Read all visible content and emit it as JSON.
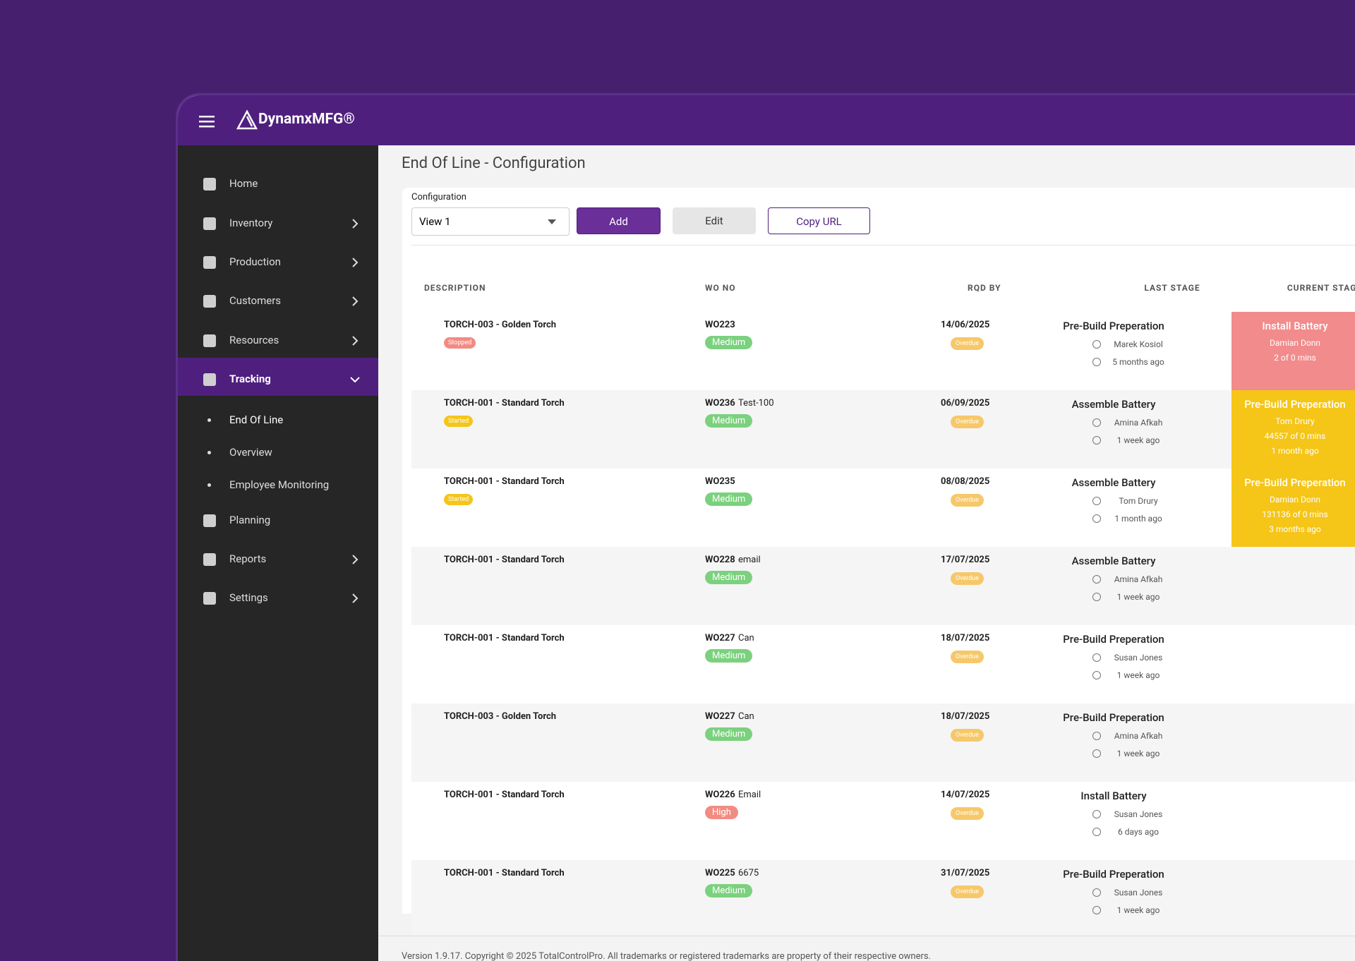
{
  "header": {
    "brand": "DynamxMFG®"
  },
  "sidebar": {
    "items": [
      "Home",
      "Inventory",
      "Production",
      "Customers",
      "Resources",
      "Tracking",
      "End Of Line",
      "Overview",
      "Employee Monitoring",
      "Planning",
      "Reports",
      "Settings"
    ]
  },
  "page": {
    "title": "End Of Line - Configuration",
    "config_label": "Configuration",
    "view": "View 1",
    "buttons": [
      "Add",
      "Edit",
      "Copy URL"
    ]
  },
  "table": {
    "columns": [
      "DESCRIPTION",
      "WO NO",
      "RQD BY",
      "LAST STAGE",
      "CURRENT STAGE"
    ],
    "rows": [
      {
        "description": "TORCH-003 - Golden Torch",
        "status": "Stopped",
        "status_color": "#f28b82",
        "wo": "WO223",
        "wo_note": "",
        "priority": "Medium",
        "priority_color": "#7bd17e",
        "rqd_by": "14/06/2025",
        "overdue": "Overdue",
        "last_stage": "Pre-Build Preperation",
        "last_user": "Marek Kosiol",
        "last_time": "5 months ago",
        "current_stage": "Install Battery",
        "current_user": "Damian Donn",
        "current_mins": "2 of 0 mins",
        "current_time": "",
        "current_color": "#f28b8b"
      },
      {
        "description": "TORCH-001 - Standard Torch",
        "status": "Started",
        "status_color": "#f5c518",
        "wo": "WO236",
        "wo_note": "Test-100",
        "priority": "Medium",
        "priority_color": "#7bd17e",
        "rqd_by": "06/09/2025",
        "overdue": "Overdue",
        "last_stage": "Assemble Battery",
        "last_user": "Amina Afkah",
        "last_time": "1 week ago",
        "current_stage": "Pre-Build Preperation",
        "current_user": "Tom Drury",
        "current_mins": "44557 of 0 mins",
        "current_time": "1 month ago",
        "current_color": "#f5c518"
      },
      {
        "description": "TORCH-001 - Standard Torch",
        "status": "Started",
        "status_color": "#f5c518",
        "wo": "WO235",
        "wo_note": "",
        "priority": "Medium",
        "priority_color": "#7bd17e",
        "rqd_by": "08/08/2025",
        "overdue": "Overdue",
        "last_stage": "Assemble Battery",
        "last_user": "Tom Drury",
        "last_time": "1 month ago",
        "current_stage": "Pre-Build Preperation",
        "current_user": "Damian Donn",
        "current_mins": "131136 of 0 mins",
        "current_time": "3 months ago",
        "current_color": "#f5c518"
      },
      {
        "description": "TORCH-001 - Standard Torch",
        "wo": "WO228",
        "wo_note": "email",
        "priority": "Medium",
        "priority_color": "#7bd17e",
        "rqd_by": "17/07/2025",
        "overdue": "Overdue",
        "last_stage": "Assemble Battery",
        "last_user": "Amina Afkah",
        "last_time": "1 week ago"
      },
      {
        "description": "TORCH-001 - Standard Torch",
        "wo": "WO227",
        "wo_note": "Can",
        "priority": "Medium",
        "priority_color": "#7bd17e",
        "rqd_by": "18/07/2025",
        "overdue": "Overdue",
        "last_stage": "Pre-Build Preperation",
        "last_user": "Susan Jones",
        "last_time": "1 week ago"
      },
      {
        "description": "TORCH-003 - Golden Torch",
        "wo": "WO227",
        "wo_note": "Can",
        "priority": "Medium",
        "priority_color": "#7bd17e",
        "rqd_by": "18/07/2025",
        "overdue": "Overdue",
        "last_stage": "Pre-Build Preperation",
        "last_user": "Amina Afkah",
        "last_time": "1 week ago"
      },
      {
        "description": "TORCH-001 - Standard Torch",
        "wo": "WO226",
        "wo_note": "Email",
        "priority": "High",
        "priority_color": "#f28b82",
        "rqd_by": "14/07/2025",
        "overdue": "Overdue",
        "last_stage": "Install Battery",
        "last_user": "Susan Jones",
        "last_time": "6 days ago"
      },
      {
        "description": "TORCH-001 - Standard Torch",
        "wo": "WO225",
        "wo_note": "6675",
        "priority": "Medium",
        "priority_color": "#7bd17e",
        "rqd_by": "31/07/2025",
        "overdue": "Overdue",
        "last_stage": "Pre-Build Preperation",
        "last_user": "Susan Jones",
        "last_time": "1 week ago"
      }
    ]
  },
  "footer": {
    "text": "Version 1.9.17. Copyright © 2025 TotalControlPro. All trademarks or registered trademarks are property of their respective owners."
  }
}
